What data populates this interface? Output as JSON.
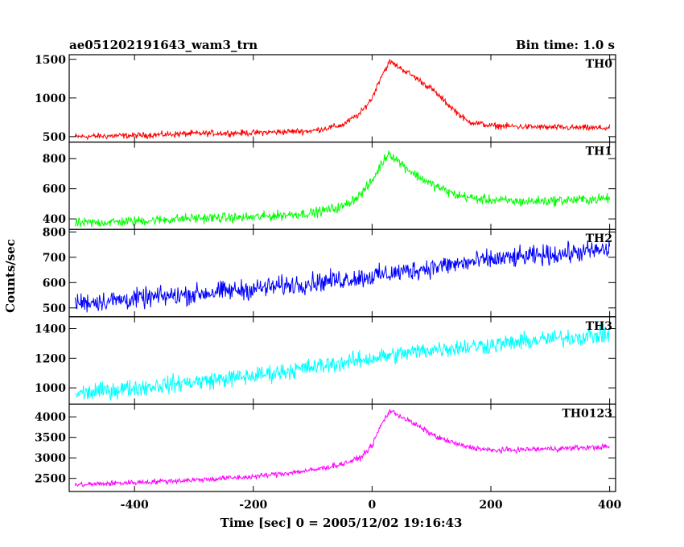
{
  "chart_data": {
    "type": "line",
    "title": "ae051202191643_wam3_trn",
    "bin_time": "Bin time: 1.0 s",
    "xlabel": "Time [sec] 0 = 2005/12/02 19:16:43",
    "ylabel": "Counts/sec",
    "xlim": [
      -510,
      410
    ],
    "xticks": [
      -400,
      -200,
      0,
      200,
      400
    ],
    "grid": false,
    "panels": [
      {
        "name": "TH0",
        "color": "#ff0000",
        "ylim": [
          430,
          1560
        ],
        "yticks": [
          500,
          1000,
          1500
        ],
        "noise": 30,
        "points": [
          [
            -500,
            500
          ],
          [
            -400,
            515
          ],
          [
            -300,
            540
          ],
          [
            -200,
            550
          ],
          [
            -100,
            575
          ],
          [
            -50,
            650
          ],
          [
            -20,
            800
          ],
          [
            0,
            1000
          ],
          [
            15,
            1280
          ],
          [
            30,
            1470
          ],
          [
            45,
            1400
          ],
          [
            70,
            1280
          ],
          [
            100,
            1120
          ],
          [
            130,
            900
          ],
          [
            160,
            700
          ],
          [
            200,
            640
          ],
          [
            300,
            620
          ],
          [
            400,
            610
          ]
        ]
      },
      {
        "name": "TH1",
        "color": "#00ff00",
        "ylim": [
          330,
          910
        ],
        "yticks": [
          400,
          600,
          800
        ],
        "noise": 25,
        "points": [
          [
            -500,
            370
          ],
          [
            -400,
            385
          ],
          [
            -300,
            405
          ],
          [
            -200,
            410
          ],
          [
            -100,
            440
          ],
          [
            -50,
            480
          ],
          [
            -20,
            560
          ],
          [
            0,
            650
          ],
          [
            15,
            760
          ],
          [
            28,
            840
          ],
          [
            45,
            780
          ],
          [
            70,
            700
          ],
          [
            100,
            630
          ],
          [
            140,
            560
          ],
          [
            180,
            530
          ],
          [
            250,
            515
          ],
          [
            300,
            520
          ],
          [
            400,
            535
          ]
        ]
      },
      {
        "name": "TH2",
        "color": "#0000ff",
        "ylim": [
          465,
          810
        ],
        "yticks": [
          500,
          600,
          700,
          800
        ],
        "noise": 30,
        "points": [
          [
            -500,
            520
          ],
          [
            -400,
            535
          ],
          [
            -300,
            555
          ],
          [
            -200,
            575
          ],
          [
            -100,
            600
          ],
          [
            0,
            625
          ],
          [
            100,
            660
          ],
          [
            200,
            690
          ],
          [
            300,
            710
          ],
          [
            400,
            730
          ]
        ]
      },
      {
        "name": "TH3",
        "color": "#00ffff",
        "ylim": [
          890,
          1480
        ],
        "yticks": [
          1000,
          1200,
          1400
        ],
        "noise": 45,
        "points": [
          [
            -500,
            960
          ],
          [
            -400,
            1000
          ],
          [
            -300,
            1040
          ],
          [
            -200,
            1080
          ],
          [
            -100,
            1140
          ],
          [
            0,
            1200
          ],
          [
            100,
            1260
          ],
          [
            200,
            1290
          ],
          [
            300,
            1330
          ],
          [
            400,
            1360
          ]
        ]
      },
      {
        "name": "TH0123",
        "color": "#ff00ff",
        "ylim": [
          2180,
          4310
        ],
        "yticks": [
          2500,
          3000,
          3500,
          4000
        ],
        "noise": 50,
        "points": [
          [
            -500,
            2340
          ],
          [
            -400,
            2400
          ],
          [
            -300,
            2460
          ],
          [
            -200,
            2540
          ],
          [
            -100,
            2700
          ],
          [
            -50,
            2850
          ],
          [
            -20,
            3000
          ],
          [
            0,
            3300
          ],
          [
            15,
            3800
          ],
          [
            30,
            4150
          ],
          [
            50,
            4000
          ],
          [
            80,
            3750
          ],
          [
            110,
            3500
          ],
          [
            150,
            3300
          ],
          [
            200,
            3180
          ],
          [
            300,
            3220
          ],
          [
            400,
            3270
          ]
        ]
      }
    ]
  }
}
